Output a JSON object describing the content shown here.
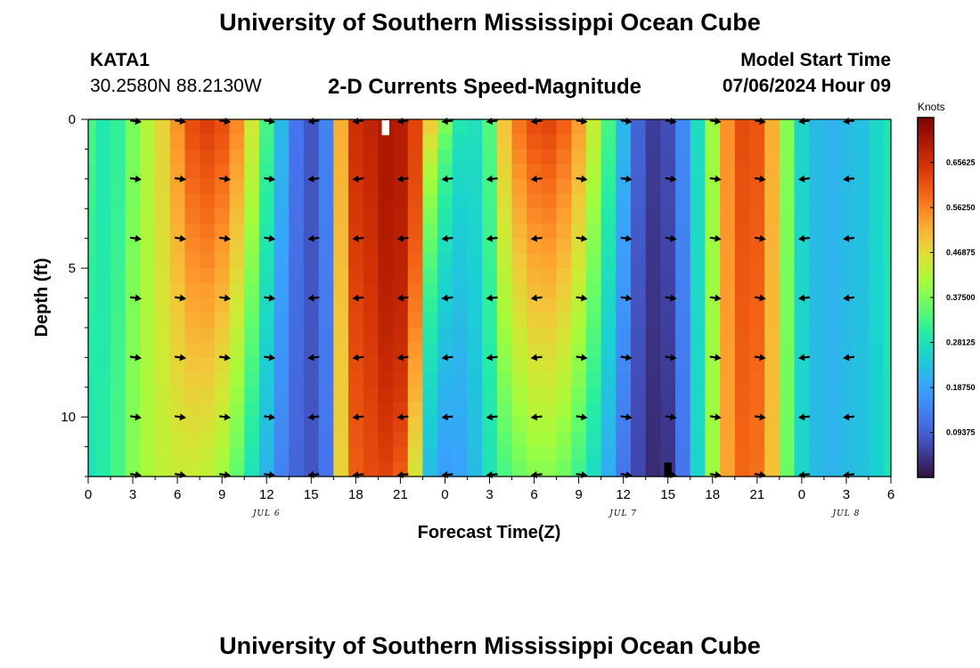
{
  "header": {
    "title": "University of Southern Mississippi Ocean Cube",
    "station_id": "KATA1",
    "station_coords": "30.2580N  88.2130W",
    "plot_title": "2-D Currents Speed-Magnitude",
    "start_label": "Model Start Time",
    "start_value": "07/06/2024 Hour 09"
  },
  "footer": {
    "title": "University of Southern Mississippi Ocean Cube"
  },
  "chart_data": {
    "type": "heatmap",
    "title": "2-D Currents Speed-Magnitude",
    "xlabel": "Forecast Time(Z)",
    "ylabel": "Depth (ft)",
    "x_range_hours": [
      0,
      54
    ],
    "x_ticks": [
      "0",
      "3",
      "6",
      "9",
      "12",
      "15",
      "18",
      "21",
      "0",
      "3",
      "6",
      "9",
      "12",
      "15",
      "18",
      "21",
      "0",
      "3",
      "6"
    ],
    "date_labels": [
      {
        "text": "JUL 6",
        "hour": 12
      },
      {
        "text": "JUL 7",
        "hour": 36
      },
      {
        "text": "JUL 8",
        "hour": 51
      }
    ],
    "y_range_ft": [
      0,
      12
    ],
    "y_ticks": [
      "0",
      "5",
      "10"
    ],
    "y_tick_values": [
      0,
      5,
      10
    ],
    "colorbar": {
      "unit": "Knots",
      "range": [
        0,
        0.75
      ],
      "tick_labels": [
        "0.65625",
        "0.56250",
        "0.46875",
        "0.37500",
        "0.28125",
        "0.18750",
        "0.09375"
      ],
      "tick_values": [
        0.65625,
        0.5625,
        0.46875,
        0.375,
        0.28125,
        0.1875,
        0.09375
      ]
    },
    "speed_profile_knots": {
      "hours": [
        0,
        1,
        2,
        3,
        4,
        5,
        6,
        7,
        8,
        9,
        10,
        11,
        12,
        13,
        14,
        15,
        16,
        17,
        18,
        19,
        20,
        21,
        22,
        23,
        24,
        25,
        26,
        27,
        28,
        29,
        30,
        31,
        32,
        33,
        34,
        35,
        36,
        37,
        38,
        39,
        40,
        41,
        42,
        43,
        44,
        45,
        46,
        47,
        48,
        49,
        50,
        51,
        52,
        53,
        54
      ],
      "surface": [
        0.33,
        0.29,
        0.31,
        0.37,
        0.42,
        0.48,
        0.55,
        0.62,
        0.64,
        0.62,
        0.56,
        0.45,
        0.33,
        0.22,
        0.12,
        0.08,
        0.14,
        0.52,
        0.66,
        0.68,
        0.7,
        0.69,
        0.63,
        0.52,
        0.4,
        0.3,
        0.28,
        0.34,
        0.5,
        0.58,
        0.62,
        0.63,
        0.6,
        0.54,
        0.44,
        0.33,
        0.22,
        0.1,
        0.05,
        0.07,
        0.15,
        0.27,
        0.4,
        0.55,
        0.62,
        0.61,
        0.52,
        0.38,
        0.26,
        0.22,
        0.21,
        0.22,
        0.23,
        0.26,
        0.29
      ],
      "bottom": [
        0.28,
        0.3,
        0.33,
        0.38,
        0.41,
        0.43,
        0.44,
        0.44,
        0.43,
        0.4,
        0.35,
        0.28,
        0.21,
        0.14,
        0.1,
        0.08,
        0.12,
        0.48,
        0.6,
        0.62,
        0.63,
        0.6,
        0.45,
        0.22,
        0.18,
        0.19,
        0.22,
        0.28,
        0.33,
        0.36,
        0.38,
        0.38,
        0.36,
        0.32,
        0.27,
        0.2,
        0.12,
        0.06,
        0.03,
        0.04,
        0.12,
        0.26,
        0.4,
        0.53,
        0.59,
        0.58,
        0.5,
        0.36,
        0.26,
        0.22,
        0.21,
        0.22,
        0.23,
        0.25,
        0.28
      ],
      "shape_power": [
        1.0,
        1.0,
        1.0,
        1.0,
        1.0,
        1.0,
        1.0,
        1.0,
        1.0,
        1.0,
        1.0,
        1.0,
        1.0,
        1.0,
        1.0,
        1.0,
        1.0,
        1.0,
        1.0,
        1.0,
        2.2,
        2.6,
        1.7,
        0.55,
        0.55,
        0.6,
        0.8,
        1.0,
        1.0,
        1.0,
        1.0,
        1.0,
        1.0,
        1.0,
        1.0,
        1.0,
        1.0,
        1.0,
        1.0,
        1.0,
        1.0,
        1.0,
        1.0,
        1.0,
        1.0,
        1.0,
        1.0,
        1.0,
        1.0,
        1.0,
        1.0,
        1.0,
        1.0,
        1.0,
        1.0
      ]
    },
    "vector_arrows": {
      "hours": [
        3,
        6,
        9,
        12,
        15,
        18,
        21,
        24,
        27,
        30,
        33,
        36,
        39,
        42,
        45,
        48,
        51
      ],
      "depths_ft": [
        0,
        2,
        4,
        6,
        8,
        10,
        12
      ],
      "direction": [
        "E",
        "E",
        "E",
        "E",
        "W",
        "W",
        "W",
        "W",
        "W",
        "W",
        "E",
        "E",
        "E",
        "E",
        "E",
        "W",
        "W"
      ]
    },
    "missing_cells": [
      {
        "hour": 20,
        "depth_range": [
          0,
          0.5
        ],
        "color": "#ffffff"
      },
      {
        "hour": 39,
        "depth_range": [
          11.5,
          12
        ],
        "color": "#000000"
      }
    ]
  }
}
